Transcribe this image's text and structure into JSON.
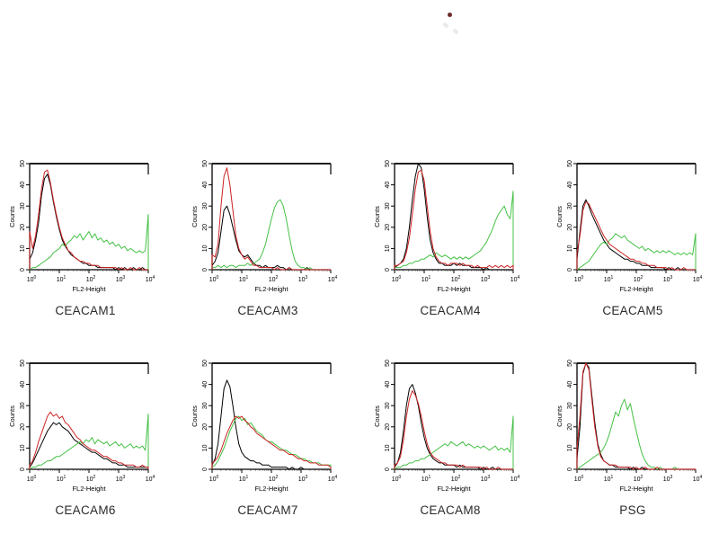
{
  "page": {
    "background": "#ffffff"
  },
  "artifact": {
    "dot_color": "#6e2a2a",
    "speck_color": "#d9cfcf"
  },
  "colors": {
    "axis": "#000000",
    "title": "#2a2a2a",
    "series_black": "#000000",
    "series_red": "#cc2222",
    "series_green": "#44c144"
  },
  "axes": {
    "ylabel": "Counts",
    "xlabel": "FL2-Height",
    "ylim": [
      0,
      50
    ],
    "yticks": [
      0,
      10,
      20,
      30,
      40,
      50
    ],
    "xscale": "log",
    "xlog_min": 0,
    "xlog_max": 4,
    "xtick_base": "10",
    "xtick_exponents": [
      0,
      1,
      2,
      3,
      4
    ],
    "x_start": 0,
    "x_step": 0.1,
    "grid": false,
    "legend": "none"
  },
  "chart_data": [
    {
      "type": "line",
      "title": "CEACAM1",
      "series": [
        {
          "name": "black-trace",
          "color_key": "series_black",
          "values": [
            5,
            8,
            14,
            22,
            35,
            43,
            45,
            40,
            32,
            25,
            19,
            14,
            11,
            9,
            7,
            6,
            5,
            4,
            3,
            3,
            2,
            2,
            2,
            1,
            1,
            1,
            1,
            1,
            1,
            0,
            1,
            0,
            1,
            0,
            0,
            1,
            0,
            0,
            1,
            0,
            0
          ]
        },
        {
          "name": "red-trace",
          "color_key": "series_red",
          "values": [
            18,
            10,
            16,
            26,
            38,
            46,
            47,
            41,
            33,
            26,
            20,
            15,
            12,
            9,
            8,
            6,
            5,
            4,
            4,
            3,
            3,
            2,
            2,
            2,
            1,
            1,
            1,
            1,
            1,
            1,
            0,
            1,
            0,
            0,
            1,
            0,
            0,
            1,
            0,
            0,
            0
          ]
        },
        {
          "name": "green-trace",
          "color_key": "series_green",
          "values": [
            0,
            1,
            1,
            2,
            3,
            4,
            5,
            6,
            8,
            9,
            10,
            12,
            11,
            13,
            14,
            16,
            15,
            17,
            14,
            16,
            18,
            15,
            17,
            14,
            15,
            13,
            14,
            12,
            13,
            11,
            12,
            10,
            11,
            9,
            10,
            9,
            8,
            9,
            8,
            9,
            26
          ]
        }
      ]
    },
    {
      "type": "line",
      "title": "CEACAM3",
      "series": [
        {
          "name": "black-trace",
          "color_key": "series_black",
          "values": [
            2,
            4,
            8,
            18,
            28,
            30,
            26,
            20,
            14,
            9,
            7,
            6,
            7,
            5,
            3,
            2,
            2,
            1,
            2,
            1,
            1,
            1,
            2,
            1,
            1,
            0,
            1,
            0,
            0,
            0,
            0,
            0,
            1,
            0,
            0,
            0,
            0,
            0,
            0,
            0,
            0
          ]
        },
        {
          "name": "red-trace",
          "color_key": "series_red",
          "values": [
            7,
            6,
            12,
            30,
            44,
            48,
            40,
            28,
            16,
            10,
            7,
            5,
            6,
            4,
            2,
            2,
            1,
            1,
            1,
            1,
            1,
            0,
            1,
            0,
            0,
            0,
            1,
            0,
            0,
            0,
            0,
            0,
            0,
            0,
            0,
            0,
            0,
            0,
            0,
            0,
            0
          ]
        },
        {
          "name": "green-trace",
          "color_key": "series_green",
          "values": [
            1,
            1,
            2,
            1,
            2,
            1,
            2,
            2,
            1,
            2,
            2,
            2,
            3,
            2,
            3,
            4,
            5,
            8,
            12,
            18,
            24,
            29,
            32,
            33,
            30,
            24,
            16,
            9,
            4,
            2,
            1,
            1,
            0,
            1,
            0,
            0,
            0,
            0,
            0,
            0,
            0
          ]
        }
      ]
    },
    {
      "type": "line",
      "title": "CEACAM4",
      "series": [
        {
          "name": "black-trace",
          "color_key": "series_black",
          "values": [
            1,
            2,
            3,
            5,
            10,
            20,
            33,
            44,
            50,
            48,
            38,
            25,
            14,
            8,
            5,
            3,
            3,
            2,
            2,
            2,
            3,
            2,
            3,
            2,
            2,
            2,
            1,
            1,
            1,
            1,
            0,
            1,
            0,
            0,
            0,
            0,
            0,
            0,
            0,
            0,
            0
          ]
        },
        {
          "name": "red-trace",
          "color_key": "series_red",
          "values": [
            2,
            2,
            3,
            4,
            8,
            15,
            26,
            38,
            46,
            47,
            42,
            30,
            18,
            10,
            6,
            4,
            3,
            3,
            2,
            3,
            3,
            3,
            2,
            3,
            2,
            2,
            2,
            1,
            2,
            1,
            1,
            1,
            2,
            1,
            2,
            1,
            2,
            1,
            2,
            1,
            2
          ]
        },
        {
          "name": "green-trace",
          "color_key": "series_green",
          "values": [
            1,
            1,
            1,
            2,
            2,
            3,
            3,
            4,
            4,
            5,
            5,
            6,
            7,
            6,
            8,
            7,
            6,
            7,
            6,
            5,
            6,
            5,
            6,
            5,
            6,
            5,
            6,
            7,
            8,
            9,
            11,
            13,
            16,
            19,
            23,
            26,
            28,
            30,
            26,
            24,
            37
          ]
        }
      ]
    },
    {
      "type": "line",
      "title": "CEACAM5",
      "series": [
        {
          "name": "black-trace",
          "color_key": "series_black",
          "values": [
            5,
            18,
            30,
            33,
            30,
            26,
            23,
            20,
            17,
            14,
            12,
            10,
            9,
            8,
            7,
            6,
            5,
            5,
            4,
            4,
            3,
            3,
            2,
            2,
            2,
            1,
            1,
            1,
            1,
            1,
            0,
            1,
            0,
            0,
            1,
            0,
            0,
            0,
            0,
            0,
            0
          ]
        },
        {
          "name": "red-trace",
          "color_key": "series_red",
          "values": [
            8,
            16,
            28,
            32,
            31,
            28,
            25,
            22,
            19,
            16,
            14,
            12,
            11,
            10,
            9,
            8,
            7,
            6,
            5,
            5,
            4,
            4,
            3,
            3,
            2,
            2,
            2,
            1,
            1,
            1,
            1,
            0,
            1,
            0,
            0,
            0,
            1,
            0,
            0,
            0,
            0
          ]
        },
        {
          "name": "green-trace",
          "color_key": "series_green",
          "values": [
            0,
            1,
            2,
            3,
            4,
            6,
            8,
            10,
            12,
            13,
            12,
            14,
            15,
            17,
            16,
            15,
            16,
            14,
            13,
            12,
            11,
            10,
            11,
            9,
            10,
            9,
            8,
            9,
            8,
            9,
            8,
            9,
            8,
            7,
            8,
            7,
            8,
            7,
            8,
            7,
            17
          ]
        }
      ]
    },
    {
      "type": "line",
      "title": "CEACAM6",
      "series": [
        {
          "name": "black-trace",
          "color_key": "series_black",
          "values": [
            1,
            3,
            6,
            9,
            12,
            15,
            18,
            20,
            22,
            21,
            22,
            20,
            19,
            18,
            16,
            14,
            13,
            12,
            11,
            10,
            9,
            8,
            8,
            7,
            6,
            5,
            5,
            4,
            3,
            3,
            2,
            2,
            2,
            1,
            1,
            1,
            1,
            1,
            1,
            1,
            1
          ]
        },
        {
          "name": "red-trace",
          "color_key": "series_red",
          "values": [
            2,
            4,
            8,
            13,
            17,
            21,
            25,
            27,
            25,
            26,
            24,
            25,
            22,
            21,
            19,
            17,
            15,
            14,
            12,
            11,
            10,
            9,
            9,
            8,
            7,
            6,
            6,
            5,
            4,
            4,
            3,
            3,
            2,
            2,
            2,
            2,
            1,
            1,
            2,
            1,
            1
          ]
        },
        {
          "name": "green-trace",
          "color_key": "series_green",
          "values": [
            0,
            1,
            1,
            2,
            2,
            3,
            4,
            4,
            5,
            6,
            6,
            7,
            8,
            9,
            10,
            11,
            12,
            13,
            12,
            14,
            13,
            15,
            12,
            14,
            13,
            12,
            13,
            11,
            12,
            13,
            11,
            12,
            10,
            11,
            12,
            10,
            11,
            10,
            11,
            9,
            26
          ]
        }
      ]
    },
    {
      "type": "line",
      "title": "CEACAM7",
      "series": [
        {
          "name": "black-trace",
          "color_key": "series_black",
          "values": [
            2,
            5,
            12,
            25,
            38,
            42,
            39,
            30,
            20,
            12,
            8,
            6,
            5,
            4,
            4,
            3,
            3,
            2,
            2,
            2,
            1,
            1,
            1,
            1,
            1,
            1,
            0,
            1,
            0,
            0,
            1,
            0,
            0,
            0,
            0,
            0,
            0,
            0,
            0,
            0,
            0
          ]
        },
        {
          "name": "red-trace",
          "color_key": "series_red",
          "values": [
            3,
            4,
            6,
            9,
            13,
            17,
            20,
            23,
            25,
            24,
            25,
            23,
            22,
            20,
            19,
            17,
            16,
            15,
            14,
            13,
            12,
            11,
            10,
            9,
            9,
            8,
            7,
            7,
            6,
            5,
            5,
            4,
            4,
            3,
            3,
            3,
            2,
            2,
            2,
            2,
            1
          ]
        },
        {
          "name": "green-trace",
          "color_key": "series_green",
          "values": [
            1,
            2,
            4,
            7,
            10,
            14,
            18,
            21,
            24,
            25,
            23,
            24,
            21,
            22,
            20,
            18,
            17,
            16,
            14,
            13,
            13,
            12,
            11,
            10,
            9,
            9,
            8,
            7,
            7,
            6,
            5,
            5,
            4,
            4,
            3,
            3,
            3,
            2,
            2,
            2,
            2
          ]
        }
      ]
    },
    {
      "type": "line",
      "title": "CEACAM8",
      "series": [
        {
          "name": "black-trace",
          "color_key": "series_black",
          "values": [
            1,
            3,
            8,
            18,
            30,
            38,
            40,
            36,
            30,
            22,
            15,
            10,
            7,
            5,
            4,
            3,
            3,
            2,
            2,
            2,
            2,
            1,
            2,
            1,
            1,
            1,
            1,
            1,
            1,
            0,
            1,
            0,
            0,
            1,
            0,
            0,
            0,
            0,
            0,
            0,
            0
          ]
        },
        {
          "name": "red-trace",
          "color_key": "series_red",
          "values": [
            2,
            3,
            6,
            14,
            25,
            33,
            37,
            35,
            31,
            25,
            18,
            12,
            8,
            6,
            5,
            4,
            3,
            3,
            2,
            2,
            2,
            2,
            1,
            2,
            1,
            1,
            1,
            1,
            1,
            1,
            0,
            1,
            0,
            0,
            0,
            1,
            0,
            0,
            0,
            0,
            0
          ]
        },
        {
          "name": "green-trace",
          "color_key": "series_green",
          "values": [
            0,
            1,
            1,
            2,
            2,
            3,
            3,
            4,
            4,
            5,
            5,
            6,
            7,
            8,
            9,
            10,
            11,
            12,
            11,
            13,
            12,
            11,
            12,
            13,
            11,
            12,
            11,
            10,
            11,
            10,
            11,
            10,
            9,
            10,
            11,
            9,
            10,
            9,
            10,
            8,
            25
          ]
        }
      ]
    },
    {
      "type": "line",
      "title": "PSG",
      "series": [
        {
          "name": "black-trace",
          "color_key": "series_black",
          "values": [
            5,
            20,
            45,
            50,
            48,
            35,
            22,
            12,
            7,
            4,
            3,
            2,
            2,
            1,
            1,
            1,
            1,
            1,
            0,
            1,
            0,
            0,
            1,
            0,
            0,
            0,
            0,
            0,
            0,
            0,
            0,
            0,
            0,
            0,
            0,
            0,
            0,
            0,
            0,
            0,
            0
          ]
        },
        {
          "name": "red-trace",
          "color_key": "series_red",
          "values": [
            10,
            25,
            46,
            50,
            47,
            33,
            20,
            11,
            6,
            4,
            3,
            2,
            2,
            2,
            1,
            1,
            1,
            1,
            1,
            0,
            1,
            0,
            0,
            1,
            0,
            0,
            0,
            1,
            0,
            0,
            0,
            0,
            0,
            0,
            0,
            0,
            0,
            0,
            0,
            0,
            0
          ]
        },
        {
          "name": "green-trace",
          "color_key": "series_green",
          "values": [
            0,
            1,
            2,
            3,
            4,
            5,
            6,
            7,
            8,
            10,
            13,
            17,
            22,
            27,
            25,
            30,
            33,
            28,
            31,
            24,
            18,
            12,
            7,
            4,
            2,
            1,
            1,
            0,
            1,
            0,
            0,
            0,
            0,
            1,
            0,
            0,
            0,
            0,
            0,
            0,
            0
          ]
        }
      ]
    }
  ]
}
